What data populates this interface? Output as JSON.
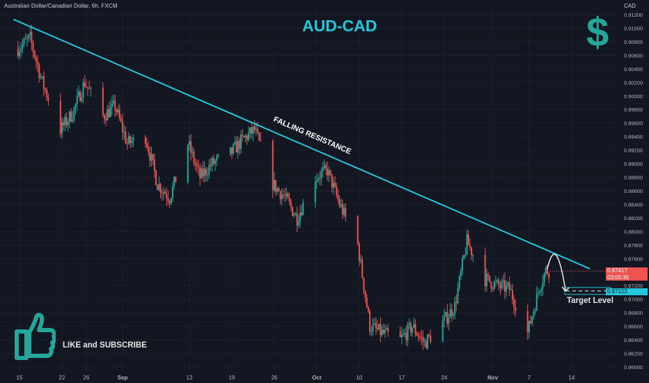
{
  "header": {
    "symbol": "Australian Dollar/Canadian Dollar, 6h, FXCM",
    "currency": "CAD"
  },
  "title": "AUD-CAD",
  "dollar_sign": "$",
  "annotations": {
    "falling_resistance": "FALLING RESISTANCE",
    "target_level": "Target Level",
    "like_subscribe": "LIKE and SUBSCRIBE"
  },
  "price_tags": {
    "current_price": "0.87417",
    "countdown": "03:05:36",
    "target_price": "0.87122"
  },
  "icons": [
    "dollar-icon",
    "thumbs-up-icon"
  ],
  "colors": {
    "background": "#131722",
    "up_candle": "#26a69a",
    "down_candle": "#ef5350",
    "trendline": "#26c6da",
    "title": "#26c6da"
  },
  "chart_data": {
    "type": "candlestick",
    "y_axis": {
      "position": "right",
      "ylim": [
        0.86,
        0.912
      ],
      "ticks": [
        "0.91200",
        "0.91000",
        "0.90800",
        "0.90600",
        "0.90400",
        "0.90200",
        "0.90000",
        "0.89800",
        "0.89600",
        "0.89400",
        "0.89200",
        "0.89000",
        "0.88800",
        "0.88600",
        "0.88400",
        "0.88200",
        "0.88000",
        "0.87800",
        "0.87600",
        "0.87400",
        "0.87200",
        "0.87000",
        "0.86800",
        "0.86600",
        "0.86400",
        "0.86200",
        "0.86000"
      ]
    },
    "x_axis": {
      "range": [
        "2022-08-15",
        "2022-11-17"
      ],
      "ticks": [
        {
          "label": "15",
          "date": "2022-08-15",
          "bold": false
        },
        {
          "label": "22",
          "date": "2022-08-22",
          "bold": false
        },
        {
          "label": "26",
          "date": "2022-08-26",
          "bold": false
        },
        {
          "label": "Sep",
          "date": "2022-09-01",
          "bold": true
        },
        {
          "label": "12",
          "date": "2022-09-12",
          "bold": false
        },
        {
          "label": "19",
          "date": "2022-09-19",
          "bold": false
        },
        {
          "label": "26",
          "date": "2022-09-26",
          "bold": false
        },
        {
          "label": "Oct",
          "date": "2022-10-03",
          "bold": true
        },
        {
          "label": "10",
          "date": "2022-10-10",
          "bold": false
        },
        {
          "label": "17",
          "date": "2022-10-17",
          "bold": false
        },
        {
          "label": "24",
          "date": "2022-10-24",
          "bold": false
        },
        {
          "label": "Nov",
          "date": "2022-11-01",
          "bold": true
        },
        {
          "label": "7",
          "date": "2022-11-07",
          "bold": false
        },
        {
          "label": "14",
          "date": "2022-11-14",
          "bold": false
        }
      ]
    },
    "price_path": [
      {
        "date": "2022-08-15",
        "close": 0.907
      },
      {
        "date": "2022-08-17",
        "close": 0.9085
      },
      {
        "date": "2022-08-19",
        "close": 0.902
      },
      {
        "date": "2022-08-22",
        "close": 0.895
      },
      {
        "date": "2022-08-24",
        "close": 0.8975
      },
      {
        "date": "2022-08-26",
        "close": 0.902
      },
      {
        "date": "2022-08-29",
        "close": 0.897
      },
      {
        "date": "2022-08-31",
        "close": 0.8985
      },
      {
        "date": "2022-09-02",
        "close": 0.893
      },
      {
        "date": "2022-09-05",
        "close": 0.894
      },
      {
        "date": "2022-09-07",
        "close": 0.887
      },
      {
        "date": "2022-09-09",
        "close": 0.885
      },
      {
        "date": "2022-09-12",
        "close": 0.893
      },
      {
        "date": "2022-09-14",
        "close": 0.888
      },
      {
        "date": "2022-09-16",
        "close": 0.89
      },
      {
        "date": "2022-09-19",
        "close": 0.8915
      },
      {
        "date": "2022-09-21",
        "close": 0.8935
      },
      {
        "date": "2022-09-23",
        "close": 0.895
      },
      {
        "date": "2022-09-26",
        "close": 0.887
      },
      {
        "date": "2022-09-28",
        "close": 0.885
      },
      {
        "date": "2022-09-30",
        "close": 0.882
      },
      {
        "date": "2022-10-03",
        "close": 0.888
      },
      {
        "date": "2022-10-05",
        "close": 0.889
      },
      {
        "date": "2022-10-07",
        "close": 0.884
      },
      {
        "date": "2022-10-10",
        "close": 0.878
      },
      {
        "date": "2022-10-12",
        "close": 0.866
      },
      {
        "date": "2022-10-14",
        "close": 0.865
      },
      {
        "date": "2022-10-17",
        "close": 0.864
      },
      {
        "date": "2022-10-19",
        "close": 0.866
      },
      {
        "date": "2022-10-21",
        "close": 0.8635
      },
      {
        "date": "2022-10-24",
        "close": 0.8665
      },
      {
        "date": "2022-10-26",
        "close": 0.869
      },
      {
        "date": "2022-10-28",
        "close": 0.8785
      },
      {
        "date": "2022-10-31",
        "close": 0.873
      },
      {
        "date": "2022-11-02",
        "close": 0.872
      },
      {
        "date": "2022-11-04",
        "close": 0.8715
      },
      {
        "date": "2022-11-07",
        "close": 0.865
      },
      {
        "date": "2022-11-09",
        "close": 0.872
      },
      {
        "date": "2022-11-10",
        "close": 0.8742
      }
    ],
    "trendline": {
      "label": "FALLING RESISTANCE",
      "from": {
        "date": "2022-08-14",
        "price": 0.9113
      },
      "to": {
        "date": "2022-11-17",
        "price": 0.8745
      }
    },
    "projection": {
      "from": {
        "date": "2022-11-10",
        "price": 0.8745
      },
      "peak": {
        "date": "2022-11-11",
        "price": 0.8778
      },
      "to": {
        "date": "2022-11-13",
        "price": 0.8712
      }
    },
    "target_level": {
      "label": "Target Level",
      "price": 0.87122
    },
    "current_price": 0.87417
  }
}
